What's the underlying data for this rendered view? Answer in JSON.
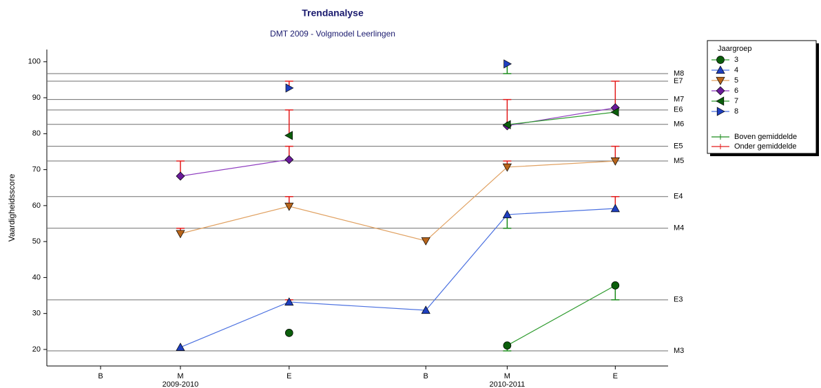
{
  "chart_data": {
    "type": "line",
    "title": "Trendanalyse",
    "subtitle": "DMT 2009 - Volgmodel Leerlingen",
    "y_label": "Vaardigheidsscore",
    "categories": [
      "B",
      "M",
      "E",
      "B",
      "M",
      "E"
    ],
    "x_sublabels": [
      null,
      "2009-2010",
      null,
      null,
      "2010-2011",
      null
    ],
    "ylim": [
      15.4,
      103.4
    ],
    "yticks": [
      20,
      30,
      40,
      50,
      60,
      70,
      80,
      90,
      100
    ],
    "legend_title": "Jaargroep",
    "legend_position": "right",
    "reference_lines": [
      {
        "label": "M8",
        "value": 96.7
      },
      {
        "label": "E7",
        "value": 94.6
      },
      {
        "label": "M7",
        "value": 89.5
      },
      {
        "label": "E6",
        "value": 86.6
      },
      {
        "label": "M6",
        "value": 82.6
      },
      {
        "label": "E5",
        "value": 76.5
      },
      {
        "label": "M5",
        "value": 72.4
      },
      {
        "label": "E4",
        "value": 62.5
      },
      {
        "label": "M4",
        "value": 53.7
      },
      {
        "label": "E3",
        "value": 33.8
      },
      {
        "label": "M3",
        "value": 19.6
      }
    ],
    "error_legend": [
      {
        "name": "Boven gemiddelde",
        "color": "#1a8a1a"
      },
      {
        "name": "Onder gemiddelde",
        "color": "#e31a1a"
      }
    ],
    "series": [
      {
        "name": "3",
        "marker": "circle",
        "color": "#0b5e0b",
        "line_color": "#2e9b2e",
        "values": [
          null,
          null,
          24.6,
          null,
          21.1,
          37.8
        ],
        "norm": [
          null,
          null,
          null,
          null,
          19.6,
          33.8
        ]
      },
      {
        "name": "4",
        "marker": "triangle-up",
        "color": "#1f3fbf",
        "line_color": "#4a70e0",
        "values": [
          null,
          20.6,
          33.2,
          30.9,
          57.5,
          59.2
        ],
        "norm": [
          null,
          null,
          33.8,
          null,
          53.7,
          62.5
        ]
      },
      {
        "name": "5",
        "marker": "triangle-down",
        "color": "#b8651b",
        "line_color": "#e0a060",
        "values": [
          null,
          52.2,
          59.8,
          50.2,
          70.7,
          72.4
        ],
        "norm": [
          null,
          53.7,
          62.5,
          null,
          72.4,
          76.5
        ]
      },
      {
        "name": "6",
        "marker": "diamond",
        "color": "#6a1b9a",
        "line_color": "#8e3bbf",
        "values": [
          null,
          68.2,
          72.8,
          null,
          82.2,
          87.2
        ],
        "norm": [
          null,
          72.4,
          76.5,
          null,
          null,
          null
        ]
      },
      {
        "name": "7",
        "marker": "triangle-left",
        "color": "#0b5e0b",
        "line_color": "#2e9b2e",
        "values": [
          null,
          null,
          79.5,
          null,
          82.5,
          86.0
        ],
        "norm": [
          null,
          null,
          86.6,
          null,
          89.5,
          94.6
        ]
      },
      {
        "name": "8",
        "marker": "triangle-right",
        "color": "#1f3fbf",
        "line_color": "#4a70e0",
        "values": [
          null,
          null,
          92.7,
          null,
          99.4,
          null
        ],
        "norm": [
          null,
          null,
          94.6,
          null,
          96.7,
          null
        ]
      }
    ]
  }
}
